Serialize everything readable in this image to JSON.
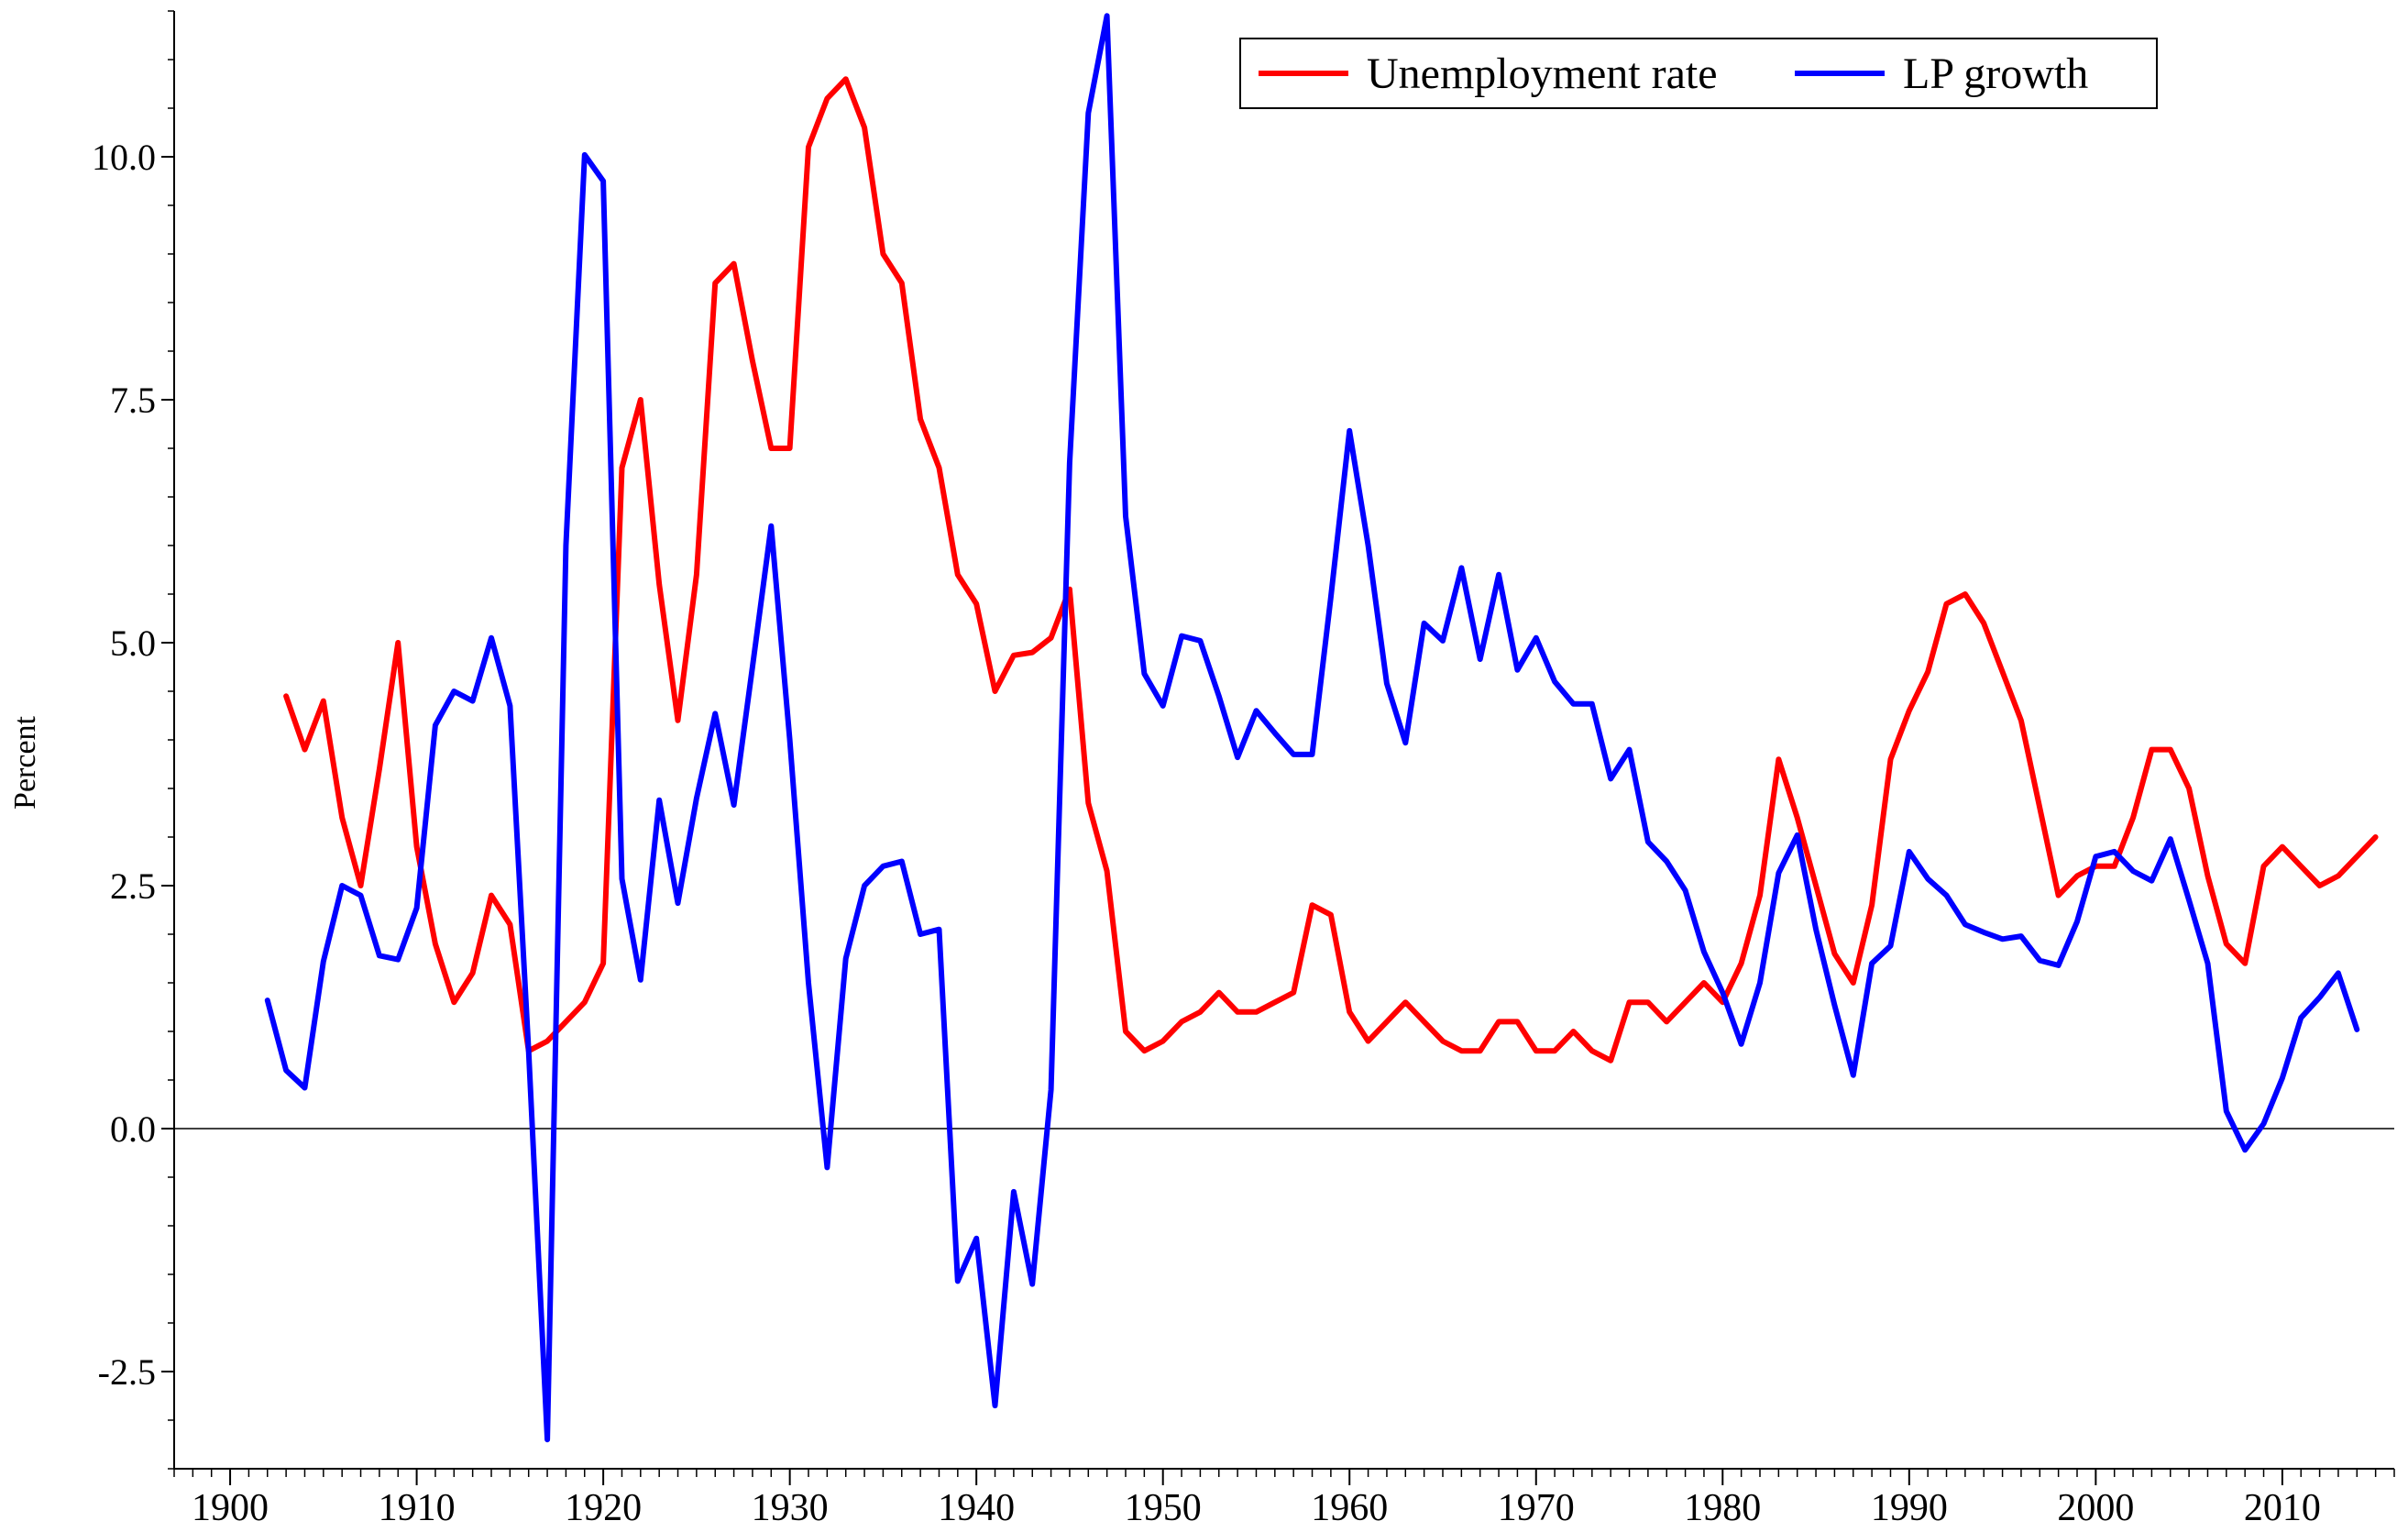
{
  "chart_data": {
    "type": "line",
    "title": "",
    "xlabel": "",
    "ylabel": "Percent",
    "xlim": [
      1897,
      2016
    ],
    "ylim": [
      -3.5,
      11.5
    ],
    "yticks": [
      -2.5,
      0.0,
      2.5,
      5.0,
      7.5,
      10.0
    ],
    "ytick_labels": [
      "-2.5",
      "0.0",
      "2.5",
      "5.0",
      "7.5",
      "10.0"
    ],
    "xticks": [
      1900,
      1910,
      1920,
      1930,
      1940,
      1950,
      1960,
      1970,
      1980,
      1990,
      2000,
      2010
    ],
    "xtick_labels": [
      "1900",
      "1910",
      "1920",
      "1930",
      "1940",
      "1950",
      "1960",
      "1970",
      "1980",
      "1990",
      "2000",
      "2010"
    ],
    "grid": false,
    "zero_line": true,
    "legend_position": "top-right",
    "series": [
      {
        "name": "Unemployment rate",
        "color": "#ff0000",
        "x": [
          1903,
          1904,
          1905,
          1906,
          1907,
          1908,
          1909,
          1910,
          1911,
          1912,
          1913,
          1914,
          1915,
          1916,
          1917,
          1918,
          1919,
          1920,
          1921,
          1922,
          1923,
          1924,
          1925,
          1926,
          1927,
          1928,
          1929,
          1930,
          1931,
          1932,
          1933,
          1934,
          1935,
          1936,
          1937,
          1938,
          1939,
          1940,
          1941,
          1942,
          1943,
          1944,
          1945,
          1946,
          1947,
          1948,
          1949,
          1950,
          1951,
          1952,
          1953,
          1954,
          1955,
          1956,
          1957,
          1958,
          1959,
          1960,
          1961,
          1962,
          1963,
          1964,
          1965,
          1966,
          1967,
          1968,
          1969,
          1970,
          1971,
          1972,
          1973,
          1974,
          1975,
          1976,
          1977,
          1978,
          1979,
          1980,
          1981,
          1982,
          1983,
          1984,
          1985,
          1986,
          1987,
          1988,
          1989,
          1990,
          1991,
          1992,
          1993,
          1994,
          1995,
          1996,
          1997,
          1998,
          1999,
          2000,
          2001,
          2002,
          2003,
          2004,
          2005,
          2006,
          2007,
          2008,
          2009,
          2010,
          2011,
          2012,
          2013,
          2014,
          2015
        ],
        "values": [
          4.45,
          3.9,
          4.4,
          3.2,
          2.5,
          3.7,
          5.0,
          2.9,
          1.9,
          1.3,
          1.6,
          2.4,
          2.1,
          0.8,
          0.9,
          1.1,
          1.3,
          1.7,
          6.8,
          7.5,
          5.6,
          4.2,
          5.7,
          8.7,
          8.9,
          7.9,
          7.0,
          7.0,
          10.1,
          10.6,
          10.8,
          10.3,
          9.0,
          8.7,
          7.3,
          6.8,
          5.7,
          5.4,
          4.5,
          4.87,
          4.9,
          5.05,
          5.55,
          3.35,
          2.65,
          1.0,
          0.8,
          0.9,
          1.1,
          1.2,
          1.4,
          1.2,
          1.2,
          1.3,
          1.4,
          2.3,
          2.2,
          1.2,
          0.9,
          1.1,
          1.3,
          1.1,
          0.9,
          0.8,
          0.8,
          1.1,
          1.1,
          0.8,
          0.8,
          1.0,
          0.8,
          0.7,
          1.3,
          1.3,
          1.1,
          1.3,
          1.5,
          1.3,
          1.7,
          2.4,
          3.8,
          3.2,
          2.5,
          1.8,
          1.5,
          2.3,
          3.8,
          4.3,
          4.7,
          5.4,
          5.5,
          5.2,
          4.7,
          4.2,
          3.3,
          2.4,
          2.6,
          2.7,
          2.7,
          3.2,
          3.9,
          3.9,
          3.5,
          2.6,
          1.9,
          1.7,
          2.7,
          2.9,
          2.7,
          2.5,
          2.6,
          2.8,
          3.0
        ]
      },
      {
        "name": "LP growth",
        "color": "#0000ff",
        "x": [
          1902,
          1903,
          1904,
          1905,
          1906,
          1907,
          1908,
          1909,
          1910,
          1911,
          1912,
          1913,
          1914,
          1915,
          1916,
          1917,
          1918,
          1919,
          1920,
          1921,
          1922,
          1923,
          1924,
          1925,
          1926,
          1927,
          1928,
          1929,
          1930,
          1931,
          1932,
          1933,
          1934,
          1935,
          1936,
          1937,
          1938,
          1939,
          1940,
          1941,
          1942,
          1943,
          1944,
          1945,
          1946,
          1947,
          1948,
          1949,
          1950,
          1951,
          1952,
          1953,
          1954,
          1955,
          1956,
          1957,
          1958,
          1959,
          1960,
          1961,
          1962,
          1963,
          1964,
          1965,
          1966,
          1967,
          1968,
          1969,
          1970,
          1971,
          1972,
          1973,
          1974,
          1975,
          1976,
          1977,
          1978,
          1979,
          1980,
          1981,
          1982,
          1983,
          1984,
          1985,
          1986,
          1987,
          1988,
          1989,
          1990,
          1991,
          1992,
          1993,
          1994,
          1995,
          1996,
          1997,
          1998,
          1999,
          2000,
          2001,
          2002,
          2003,
          2004,
          2005,
          2006,
          2007,
          2008,
          2009,
          2010,
          2011,
          2012,
          2013,
          2014
        ],
        "values": [
          1.32,
          0.6,
          0.42,
          1.72,
          2.5,
          2.4,
          1.78,
          1.74,
          2.27,
          4.15,
          4.5,
          4.4,
          5.05,
          4.35,
          0.8,
          -3.2,
          6.0,
          10.02,
          9.75,
          2.57,
          1.53,
          3.38,
          2.32,
          3.4,
          4.27,
          3.33,
          4.75,
          6.2,
          4.0,
          1.5,
          -0.4,
          1.75,
          2.5,
          2.7,
          2.75,
          2.0,
          2.05,
          -1.57,
          -1.13,
          -2.85,
          -0.65,
          -1.6,
          0.4,
          6.85,
          10.45,
          11.45,
          6.3,
          4.68,
          4.35,
          5.07,
          5.02,
          4.45,
          3.82,
          4.3,
          4.07,
          3.85,
          3.85,
          5.47,
          7.18,
          6.0,
          4.58,
          3.97,
          5.2,
          5.02,
          5.77,
          4.83,
          5.7,
          4.72,
          5.05,
          4.6,
          4.37,
          4.37,
          3.6,
          3.9,
          2.95,
          2.75,
          2.45,
          1.82,
          1.4,
          0.87,
          1.5,
          2.63,
          3.02,
          2.05,
          1.27,
          0.55,
          1.7,
          1.88,
          2.85,
          2.57,
          2.4,
          2.1,
          2.02,
          1.95,
          1.98,
          1.73,
          1.68,
          2.13,
          2.8,
          2.85,
          2.65,
          2.55,
          2.98,
          2.35,
          1.7,
          0.18,
          -0.22,
          0.05,
          0.52,
          1.14,
          1.35,
          1.6,
          1.02
        ]
      }
    ]
  }
}
